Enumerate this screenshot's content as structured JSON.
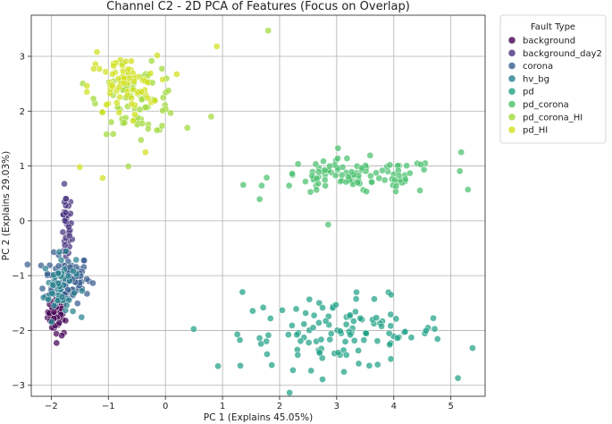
{
  "chart_data": {
    "type": "scatter",
    "title": "Channel C2 - 2D PCA of Features (Focus on Overlap)",
    "xlabel": "PC 1 (Explains 45.05%)",
    "ylabel": "PC 2 (Explains 29.03%)",
    "xlim": [
      -2.35,
      5.6
    ],
    "ylim": [
      -3.2,
      3.75
    ],
    "xticks": [
      -2,
      -1,
      0,
      1,
      2,
      3,
      4,
      5
    ],
    "yticks": [
      -3,
      -2,
      -1,
      0,
      1,
      2,
      3
    ],
    "grid": true,
    "legend": {
      "title": "Fault Type",
      "placement": "outside-right"
    },
    "series": [
      {
        "name": "background",
        "color": "#440154",
        "clusters": [
          {
            "cx": -1.88,
            "cy": -1.65,
            "sx": 0.09,
            "sy": 0.22,
            "n": 55
          }
        ]
      },
      {
        "name": "background_day2",
        "color": "#46327e",
        "clusters": [
          {
            "cx": -1.74,
            "cy": -0.15,
            "sx": 0.05,
            "sy": 0.33,
            "n": 38
          }
        ]
      },
      {
        "name": "corona",
        "color": "#365c8d",
        "clusters": [
          {
            "cx": -1.72,
            "cy": -1.05,
            "sx": 0.2,
            "sy": 0.22,
            "n": 95
          }
        ]
      },
      {
        "name": "hv_bg",
        "color": "#277f8e",
        "clusters": [
          {
            "cx": -1.85,
            "cy": -1.2,
            "sx": 0.14,
            "sy": 0.28,
            "n": 55
          }
        ]
      },
      {
        "name": "pd",
        "color": "#1fa187",
        "clusters": [
          {
            "cx": 3.1,
            "cy": -2.05,
            "sx": 0.9,
            "sy": 0.32,
            "n": 115
          },
          {
            "cx": 1.35,
            "cy": -1.3,
            "sx": 0.0,
            "sy": 0.0,
            "n": 1
          },
          {
            "cx": 0.92,
            "cy": -2.65,
            "sx": 0.0,
            "sy": 0.0,
            "n": 1
          },
          {
            "cx": 5.38,
            "cy": -2.32,
            "sx": 0.0,
            "sy": 0.0,
            "n": 1
          }
        ]
      },
      {
        "name": "pd_corona",
        "color": "#4ac16d",
        "clusters": [
          {
            "cx": 3.35,
            "cy": 0.8,
            "sx": 0.75,
            "sy": 0.16,
            "n": 105
          },
          {
            "cx": 2.85,
            "cy": -0.07,
            "sx": 0.0,
            "sy": 0.0,
            "n": 1
          },
          {
            "cx": 5.3,
            "cy": 0.57,
            "sx": 0.0,
            "sy": 0.0,
            "n": 1
          },
          {
            "cx": 5.18,
            "cy": 1.25,
            "sx": 0.0,
            "sy": 0.0,
            "n": 1
          }
        ]
      },
      {
        "name": "pd_corona_HI",
        "color": "#a0da39",
        "clusters": [
          {
            "cx": -0.45,
            "cy": 2.2,
            "sx": 0.35,
            "sy": 0.3,
            "n": 75
          },
          {
            "cx": 0.8,
            "cy": 1.9,
            "sx": 0.0,
            "sy": 0.0,
            "n": 1
          },
          {
            "cx": 1.8,
            "cy": 3.47,
            "sx": 0.0,
            "sy": 0.0,
            "n": 1
          }
        ]
      },
      {
        "name": "pd_HI",
        "color": "#d0e11c",
        "clusters": [
          {
            "cx": -0.75,
            "cy": 2.45,
            "sx": 0.3,
            "sy": 0.28,
            "n": 70
          },
          {
            "cx": -1.5,
            "cy": 0.98,
            "sx": 0.0,
            "sy": 0.0,
            "n": 1
          },
          {
            "cx": -1.1,
            "cy": 0.78,
            "sx": 0.0,
            "sy": 0.0,
            "n": 1
          },
          {
            "cx": -1.2,
            "cy": 3.08,
            "sx": 0.0,
            "sy": 0.0,
            "n": 1
          },
          {
            "cx": 0.9,
            "cy": 3.18,
            "sx": 0.0,
            "sy": 0.0,
            "n": 1
          },
          {
            "cx": -0.35,
            "cy": 1.25,
            "sx": 0.0,
            "sy": 0.0,
            "n": 1
          }
        ]
      }
    ]
  }
}
